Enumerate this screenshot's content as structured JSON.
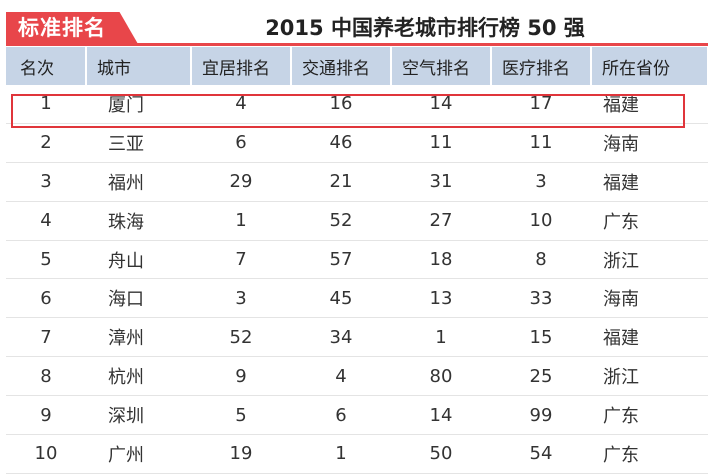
{
  "badge": "标准排名",
  "title": "2015 中国养老城市排行榜 50 强",
  "colors": {
    "accent": "#e8464a",
    "header_bg": "#c6d4e6",
    "highlight": "#e0353b"
  },
  "columns": [
    "名次",
    "城市",
    "宜居排名",
    "交通排名",
    "空气排名",
    "医疗排名",
    "所在省份"
  ],
  "rows": [
    [
      "1",
      "厦门",
      "4",
      "16",
      "14",
      "17",
      "福建"
    ],
    [
      "2",
      "三亚",
      "6",
      "46",
      "11",
      "11",
      "海南"
    ],
    [
      "3",
      "福州",
      "29",
      "21",
      "31",
      "3",
      "福建"
    ],
    [
      "4",
      "珠海",
      "1",
      "52",
      "27",
      "10",
      "广东"
    ],
    [
      "5",
      "舟山",
      "7",
      "57",
      "18",
      "8",
      "浙江"
    ],
    [
      "6",
      "海口",
      "3",
      "45",
      "13",
      "33",
      "海南"
    ],
    [
      "7",
      "漳州",
      "52",
      "34",
      "1",
      "15",
      "福建"
    ],
    [
      "8",
      "杭州",
      "9",
      "4",
      "80",
      "25",
      "浙江"
    ],
    [
      "9",
      "深圳",
      "5",
      "6",
      "14",
      "99",
      "广东"
    ],
    [
      "10",
      "广州",
      "19",
      "1",
      "50",
      "54",
      "广东"
    ]
  ]
}
